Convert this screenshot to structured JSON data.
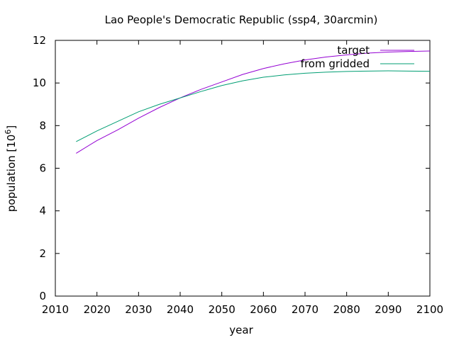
{
  "chart_data": {
    "type": "line",
    "title": "Lao People's Democratic Republic (ssp4, 30arcmin)",
    "xlabel": "year",
    "ylabel_base": "population [10",
    "ylabel_exp": "6",
    "ylabel_close": "]",
    "xlim": [
      2010,
      2100
    ],
    "ylim": [
      0,
      12
    ],
    "xticks": [
      "2010",
      "2020",
      "2030",
      "2040",
      "2050",
      "2060",
      "2070",
      "2080",
      "2090",
      "2100"
    ],
    "yticks": [
      "0",
      "2",
      "4",
      "6",
      "8",
      "10",
      "12"
    ],
    "grid": false,
    "legend": "top-right",
    "series": [
      {
        "name": "target",
        "color": "#9400d3",
        "x": [
          2015,
          2020,
          2025,
          2030,
          2035,
          2040,
          2045,
          2050,
          2055,
          2060,
          2065,
          2070,
          2075,
          2080,
          2085,
          2090,
          2095,
          2100
        ],
        "y": [
          6.7,
          7.3,
          7.8,
          8.35,
          8.85,
          9.3,
          9.7,
          10.05,
          10.4,
          10.68,
          10.9,
          11.08,
          11.22,
          11.32,
          11.4,
          11.45,
          11.48,
          11.5
        ]
      },
      {
        "name": "from gridded",
        "color": "#009e73",
        "x": [
          2015,
          2020,
          2025,
          2030,
          2035,
          2040,
          2045,
          2050,
          2055,
          2060,
          2065,
          2070,
          2075,
          2080,
          2085,
          2090,
          2095,
          2100
        ],
        "y": [
          7.25,
          7.75,
          8.2,
          8.65,
          9.0,
          9.3,
          9.6,
          9.88,
          10.1,
          10.27,
          10.38,
          10.46,
          10.51,
          10.54,
          10.56,
          10.57,
          10.56,
          10.55
        ]
      }
    ]
  }
}
